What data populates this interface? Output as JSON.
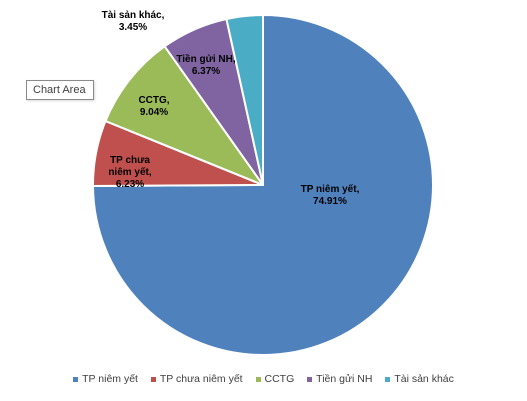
{
  "chart_data": {
    "type": "pie",
    "title": "",
    "series": [
      {
        "name": "",
        "values": [
          74.91,
          6.23,
          9.04,
          6.37,
          3.45
        ]
      }
    ],
    "categories": [
      "TP niêm yết",
      "TP chưa niêm yết",
      "CCTG",
      "Tiền gửi NH",
      "Tài sản khác"
    ],
    "data_labels": [
      [
        "TP niêm yết,",
        "74.91%"
      ],
      [
        "TP chưa",
        "niêm yết,",
        "6.23%"
      ],
      [
        "CCTG,",
        "9.04%"
      ],
      [
        "Tiền gửi NH,",
        "6.37%"
      ],
      [
        "Tài sản khác,",
        "3.45%"
      ]
    ],
    "colors": [
      "#4f81bd",
      "#c0504d",
      "#9bbb59",
      "#8064a2",
      "#4bacc6"
    ],
    "start_angle_deg": 0,
    "direction": "clockwise",
    "legend_position": "bottom"
  },
  "ui": {
    "tooltip_label": "Chart Area"
  },
  "legend": {
    "items": [
      {
        "label": "TP niêm yết",
        "color": "#4f81bd"
      },
      {
        "label": "TP chưa niêm yết",
        "color": "#c0504d"
      },
      {
        "label": "CCTG",
        "color": "#9bbb59"
      },
      {
        "label": "Tiền gửi NH",
        "color": "#8064a2"
      },
      {
        "label": "Tài sản khác",
        "color": "#4bacc6"
      }
    ]
  }
}
